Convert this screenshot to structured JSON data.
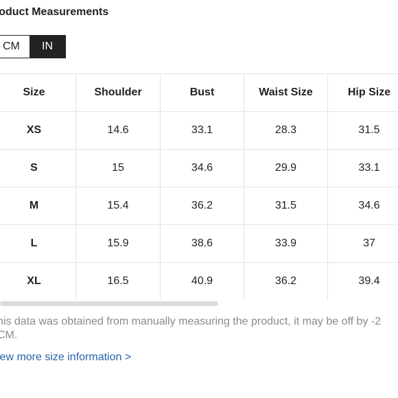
{
  "title": "roduct Measurements",
  "unit_toggle": {
    "options": [
      "CM",
      "IN"
    ],
    "selected": "IN"
  },
  "table": {
    "headers": [
      "Size",
      "Shoulder",
      "Bust",
      "Waist Size",
      "Hip Size"
    ],
    "rows": [
      [
        "XS",
        "14.6",
        "33.1",
        "28.3",
        "31.5"
      ],
      [
        "S",
        "15",
        "34.6",
        "29.9",
        "33.1"
      ],
      [
        "M",
        "15.4",
        "36.2",
        "31.5",
        "34.6"
      ],
      [
        "L",
        "15.9",
        "38.6",
        "33.9",
        "37"
      ],
      [
        "XL",
        "16.5",
        "40.9",
        "36.2",
        "39.4"
      ]
    ]
  },
  "note": "his data was obtained from manually measuring the product, it may be off by -2 CM.",
  "more_link": "iew more size information >",
  "colors": {
    "text": "#222222",
    "note": "#8a8a8a",
    "link": "#2962a8",
    "selected_toggle_bg": "#222222",
    "border": "#e4e4e4"
  }
}
